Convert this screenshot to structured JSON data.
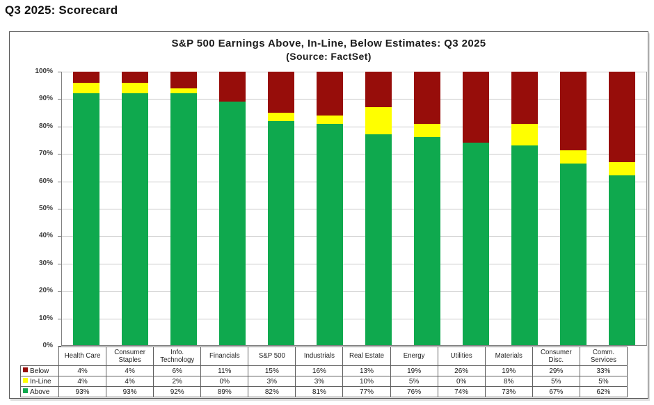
{
  "page": {
    "title": "Q3 2025: Scorecard"
  },
  "chart": {
    "title": "S&P 500 Earnings Above, In-Line, Below Estimates: Q3 2025",
    "subtitle": "(Source: FactSet)"
  },
  "colors": {
    "above": "#0FA94E",
    "inline": "#FFFF00",
    "below": "#970D0A",
    "gridline": "#C9C9C9",
    "axis": "#808080"
  },
  "chart_data": {
    "type": "bar",
    "stacked": true,
    "normalized_to_100": true,
    "title": "S&P 500 Earnings Above, In-Line, Below Estimates: Q3 2025",
    "subtitle": "(Source: FactSet)",
    "xlabel": "",
    "ylabel": "",
    "ylim": [
      0,
      100
    ],
    "ytick_step": 10,
    "ytick_suffix": "%",
    "grid": true,
    "legend_position": "table-left",
    "categories": [
      "Health Care",
      "Consumer Staples",
      "Info. Technology",
      "Financials",
      "S&P 500",
      "Industrials",
      "Real Estate",
      "Energy",
      "Utilities",
      "Materials",
      "Consumer Disc.",
      "Comm. Services"
    ],
    "series": [
      {
        "name": "Below",
        "color": "#970D0A",
        "values": [
          4,
          4,
          6,
          11,
          15,
          16,
          13,
          19,
          26,
          19,
          29,
          33
        ]
      },
      {
        "name": "In-Line",
        "color": "#FFFF00",
        "values": [
          4,
          4,
          2,
          0,
          3,
          3,
          10,
          5,
          0,
          8,
          5,
          5
        ]
      },
      {
        "name": "Above",
        "color": "#0FA94E",
        "values": [
          93,
          93,
          92,
          89,
          82,
          81,
          77,
          76,
          74,
          73,
          67,
          62
        ]
      }
    ],
    "value_suffix": "%"
  }
}
